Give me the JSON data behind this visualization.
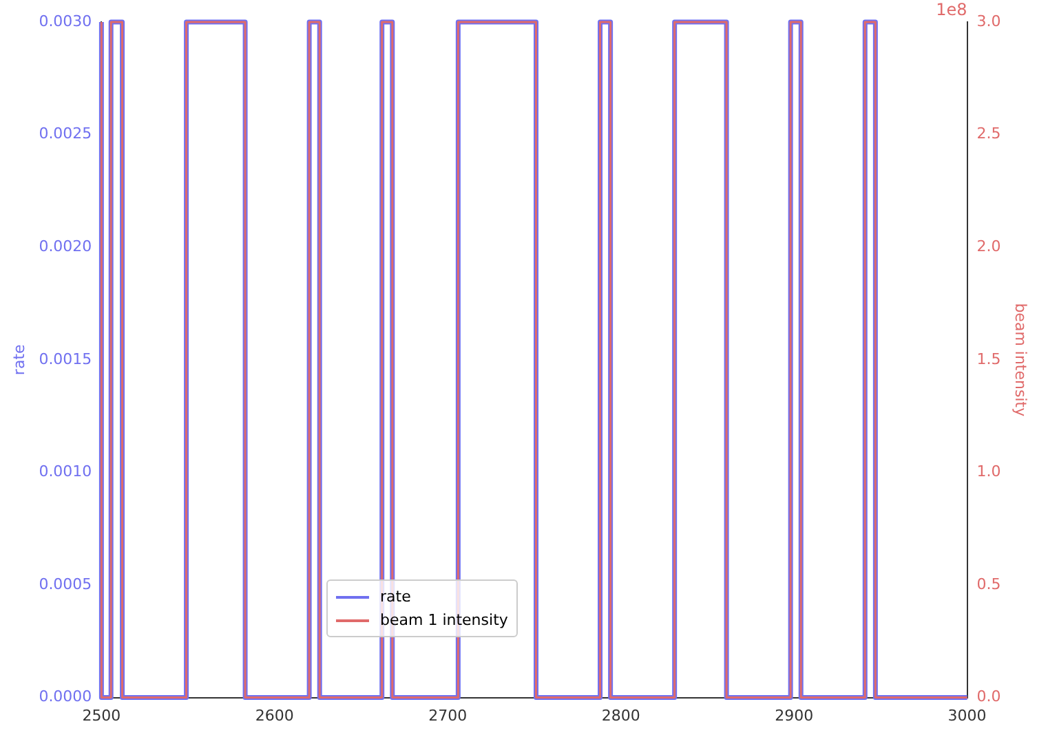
{
  "chart_data": {
    "type": "step",
    "x": [
      2500,
      2505.5,
      2512,
      2549,
      2583,
      2620,
      2626,
      2662,
      2668,
      2706,
      2751,
      2788,
      2794,
      2831,
      2861,
      2898,
      2904,
      2941,
      2947,
      2984,
      3000
    ],
    "series": [
      {
        "name": "rate",
        "color": "#7070f0",
        "values": [
          0.003,
          0,
          0.003,
          0,
          0.003,
          0,
          0.003,
          0,
          0.003,
          0,
          0.003,
          0,
          0.003,
          0,
          0.003,
          0,
          0.003,
          0,
          0.003,
          0,
          0
        ]
      },
      {
        "name": "beam 1 intensity",
        "color": "#e06a6a",
        "axis": "y2",
        "values": [
          3,
          0,
          3,
          0,
          3,
          0,
          3,
          0,
          3,
          0,
          3,
          0,
          3,
          0,
          3,
          0,
          3,
          0,
          3,
          0,
          0
        ]
      }
    ],
    "ylabel": "rate",
    "y2label": "beam intensity",
    "xlim": [
      2500,
      3000
    ],
    "xticks": [
      2500,
      2600,
      2700,
      2800,
      2900,
      3000
    ],
    "ylim": [
      0,
      0.003
    ],
    "yticks": [
      {
        "value": 0,
        "label": "0.0000"
      },
      0.0005,
      {
        "value": 0.001,
        "label": "0.0010"
      },
      0.0015,
      {
        "value": 0.002,
        "label": "0.0020"
      },
      0.0025,
      {
        "value": 0.003,
        "label": "0.0030"
      }
    ],
    "y2lim": [
      0,
      3
    ],
    "y2ticks": [
      {
        "value": 0,
        "label": "0.0"
      },
      0.5,
      {
        "value": 1,
        "label": "1.0"
      },
      1.5,
      {
        "value": 2,
        "label": "2.0"
      },
      2.5,
      {
        "value": 3,
        "label": "3.0"
      }
    ],
    "annotations": [
      "1e8"
    ],
    "legend": "bottom",
    "grid": false,
    "line_style": "solid",
    "marker": "none"
  }
}
